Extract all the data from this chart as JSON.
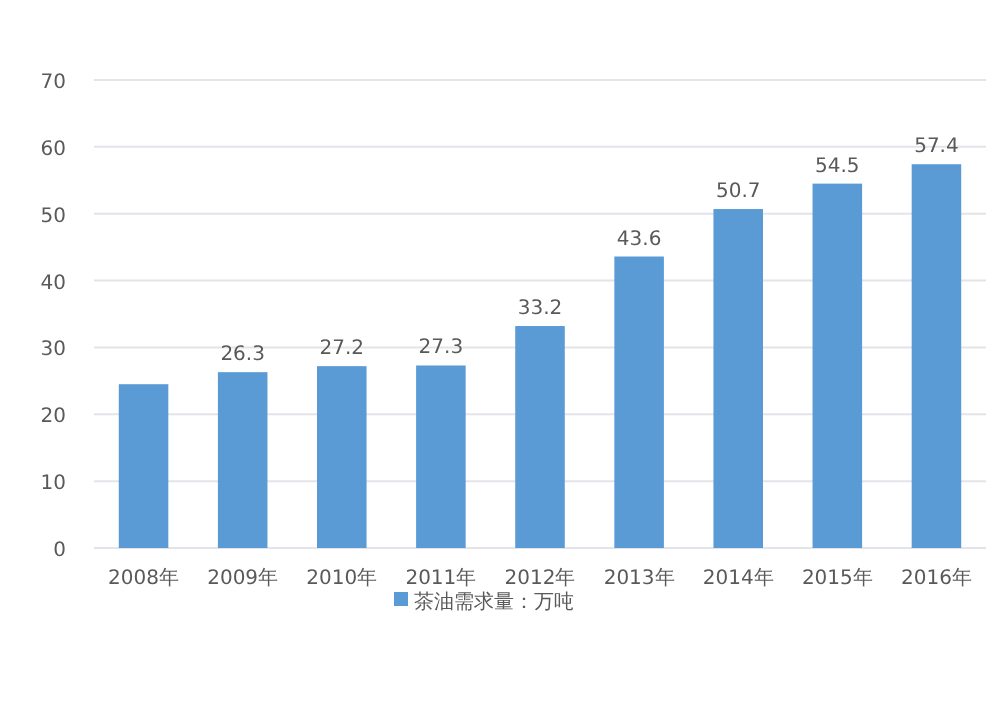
{
  "chart_data": {
    "type": "bar",
    "categories": [
      "2008年",
      "2009年",
      "2010年",
      "2011年",
      "2012年",
      "2013年",
      "2014年",
      "2015年",
      "2016年"
    ],
    "series": [
      {
        "name": "茶油需求量：万吨",
        "color": "#5b9bd5",
        "values": [
          24.5,
          26.3,
          27.2,
          27.3,
          33.2,
          43.6,
          50.7,
          54.5,
          57.4
        ],
        "value_labels": [
          null,
          "26.3",
          "27.2",
          "27.3",
          "33.2",
          "43.6",
          "50.7",
          "54.5",
          "57.4"
        ]
      }
    ],
    "ylim": [
      0,
      70
    ],
    "yticks": [
      0,
      10,
      20,
      30,
      40,
      50,
      60,
      70
    ],
    "grid": "y",
    "legend": "bottom"
  }
}
